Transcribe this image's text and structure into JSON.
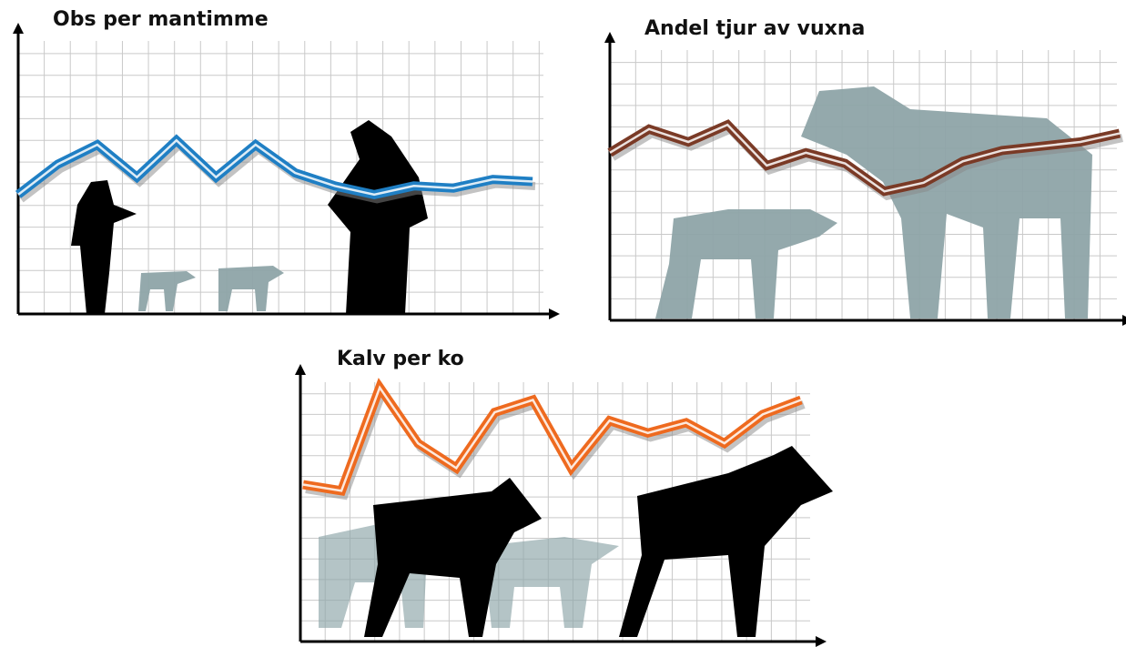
{
  "chart_data": [
    {
      "type": "line",
      "title": "Obs per mantimme",
      "categories": [
        null,
        null,
        null,
        null,
        null,
        null,
        null,
        null,
        null,
        null,
        null,
        null,
        null,
        null
      ],
      "series": [
        {
          "color": "#1f7fc4",
          "values": [
            5.5,
            6.9,
            7.8,
            6.3,
            8.0,
            6.3,
            7.8,
            6.5,
            5.9,
            5.5,
            5.9,
            5.8,
            6.2,
            6.1
          ]
        }
      ],
      "ylim": [
        0,
        13
      ],
      "yticks": [
        1,
        2,
        3,
        4,
        5,
        6,
        7,
        8,
        9,
        10,
        11,
        12
      ],
      "grid": true
    },
    {
      "type": "line",
      "title": "Andel tjur av vuxna",
      "categories": [
        null,
        null,
        null,
        null,
        null,
        null,
        null,
        null,
        null,
        null,
        null,
        null,
        null,
        null
      ],
      "series": [
        {
          "color": "#7a3a26",
          "values": [
            7.8,
            8.9,
            8.3,
            9.1,
            7.2,
            7.8,
            7.3,
            6.0,
            6.4,
            7.4,
            7.9,
            8.1,
            8.3,
            8.7
          ]
        }
      ],
      "ylim": [
        0,
        13
      ],
      "yticks": [
        1,
        2,
        3,
        4,
        5,
        6,
        7,
        8,
        9,
        10,
        11,
        12
      ],
      "grid": true
    },
    {
      "type": "line",
      "title": "Kalv per ko",
      "categories": [
        null,
        null,
        null,
        null,
        null,
        null,
        null,
        null,
        null,
        null,
        null,
        null,
        null,
        null
      ],
      "series": [
        {
          "color": "#ee6a1f",
          "values": [
            7.6,
            7.3,
            12.3,
            9.6,
            8.4,
            11.1,
            11.7,
            8.4,
            10.7,
            10.1,
            10.6,
            9.6,
            11.0,
            11.7
          ]
        }
      ],
      "ylim": [
        0,
        13
      ],
      "yticks": [
        1,
        2,
        3,
        4,
        5,
        6,
        7,
        8,
        9,
        10,
        11,
        12
      ],
      "grid": true
    }
  ]
}
